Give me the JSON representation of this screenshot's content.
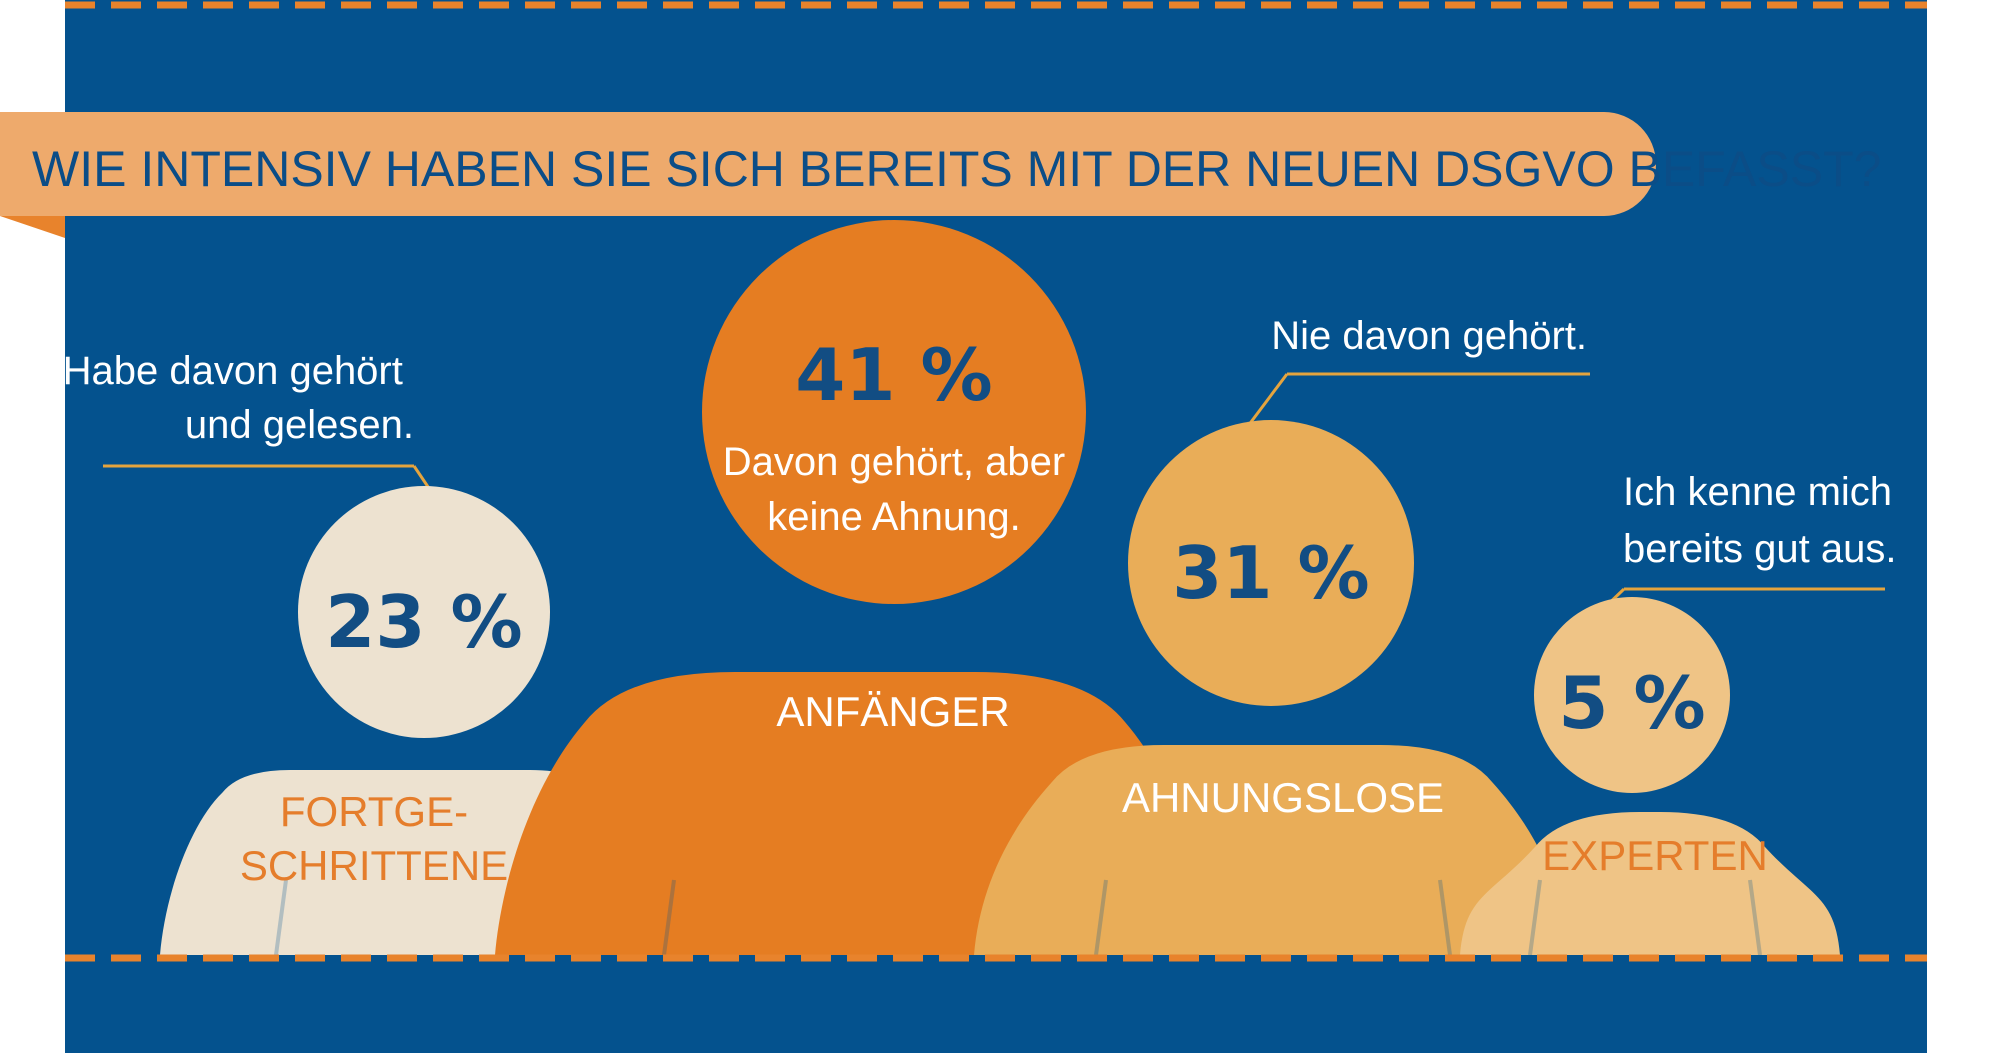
{
  "colors": {
    "background": "#04528e",
    "dash": "#e8832c",
    "title_banner": "#eeaa6c",
    "title_text": "#0b4d87",
    "value_text": "#124d83",
    "connector": "#e5a43e"
  },
  "chart_data": {
    "type": "bubble-infographic",
    "title": "WIE INTENSIV HABEN SIE SICH BEREITS MIT DER NEUEN DSGVO BEFASST?",
    "unit": "%",
    "categories": [
      "FORTGE-SCHRITTENE",
      "ANFÄNGER",
      "AHNUNGSLOSE",
      "EXPERTEN"
    ],
    "values": [
      23,
      41,
      31,
      5
    ],
    "items": [
      {
        "category": "FORTGE-SCHRITTENE",
        "category_lines": [
          "FORTGE-",
          "SCHRITTENE"
        ],
        "value": 23,
        "value_label": "23 %",
        "description_lines": [
          "Habe davon gehört",
          "und gelesen."
        ],
        "head_color": "#ede2d0",
        "body_color": "#ede2d0",
        "label_color": "#e57d2b"
      },
      {
        "category": "ANFÄNGER",
        "category_lines": [
          "ANFÄNGER"
        ],
        "value": 41,
        "value_label": "41 %",
        "description_lines": [
          "Davon gehört, aber",
          "keine Ahnung."
        ],
        "head_color": "#e57d22",
        "body_color": "#e57d22",
        "label_color": "#ffffff"
      },
      {
        "category": "AHNUNGSLOSE",
        "category_lines": [
          "AHNUNGSLOSE"
        ],
        "value": 31,
        "value_label": "31 %",
        "description_lines": [
          "Nie davon gehört."
        ],
        "head_color": "#e9ad58",
        "body_color": "#e9ad58",
        "label_color": "#ffffff"
      },
      {
        "category": "EXPERTEN",
        "category_lines": [
          "EXPERTEN"
        ],
        "value": 5,
        "value_label": "5 %",
        "description_lines": [
          "Ich kenne mich",
          "bereits gut aus."
        ],
        "head_color": "#efc486",
        "body_color": "#efc486",
        "label_color": "#e57d2b"
      }
    ]
  }
}
